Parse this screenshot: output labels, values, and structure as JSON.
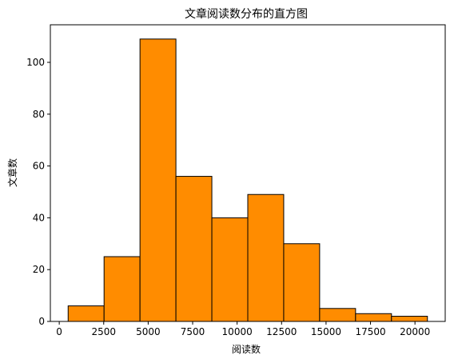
{
  "chart_data": {
    "type": "bar",
    "title": "文章阅读数分布的直方图",
    "xlabel": "阅读数",
    "ylabel": "文章数",
    "bin_edges": [
      500,
      2520,
      4540,
      6560,
      8580,
      10600,
      12620,
      14640,
      16660,
      18680,
      20700
    ],
    "values": [
      6,
      25,
      109,
      56,
      40,
      49,
      30,
      5,
      3,
      2
    ],
    "xlim": [
      -500,
      21700
    ],
    "ylim": [
      0,
      114.5
    ],
    "x_ticks": [
      0,
      2500,
      5000,
      7500,
      10000,
      12500,
      15000,
      17500,
      20000
    ],
    "y_ticks": [
      0,
      20,
      40,
      60,
      80,
      100
    ],
    "bar_color": "#ff8c00",
    "edge_color": "#000000",
    "grid": false
  }
}
